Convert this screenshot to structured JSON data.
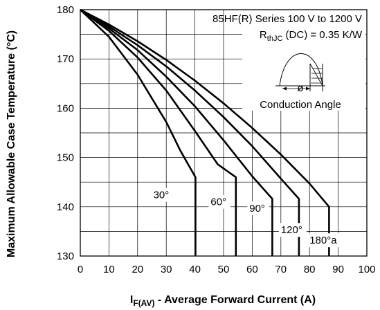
{
  "chart_data": {
    "type": "line",
    "title": "85HF(R) Series 100 V to 1200 V",
    "subtitle": {
      "prefix": "R",
      "subscript": "thJC",
      "suffix": " (DC) = 0.35 K/W"
    },
    "inset_label": "Conduction Angle",
    "inset_symbol": "ø",
    "xlabel": {
      "prefix": "I",
      "subscript": "F(AV)",
      "suffix": " - Average Forward Current (A)"
    },
    "ylabel": "Maximum Allowable Case Temperature (°C)",
    "xlim": [
      0,
      100
    ],
    "ylim": [
      130,
      180
    ],
    "xticks": [
      "0",
      "10",
      "20",
      "30",
      "40",
      "50",
      "60",
      "70",
      "80",
      "90",
      "100"
    ],
    "yticks": [
      "130",
      "140",
      "150",
      "160",
      "170",
      "180"
    ],
    "grid": true,
    "series": [
      {
        "name": "30°",
        "label_pos": [
          25.5,
          141.7
        ],
        "points": [
          [
            0,
            180
          ],
          [
            10,
            174.5
          ],
          [
            20,
            166.8
          ],
          [
            30,
            157.2
          ],
          [
            35,
            151.3
          ],
          [
            40.2,
            146
          ]
        ]
      },
      {
        "name": "60°",
        "label_pos": [
          45.5,
          140.3
        ],
        "points": [
          [
            0,
            180
          ],
          [
            10,
            175.7
          ],
          [
            20,
            170.3
          ],
          [
            30,
            163.6
          ],
          [
            40,
            155.4
          ],
          [
            48,
            148.6
          ],
          [
            54.3,
            146
          ]
        ]
      },
      {
        "name": "90°",
        "label_pos": [
          59.0,
          139.0
        ],
        "points": [
          [
            0,
            180
          ],
          [
            10,
            176.2
          ],
          [
            20,
            171.8
          ],
          [
            30,
            166.4
          ],
          [
            40,
            160.4
          ],
          [
            50,
            153.5
          ],
          [
            60,
            146.2
          ],
          [
            67,
            141.6
          ]
        ]
      },
      {
        "name": "120°",
        "label_pos": [
          70.0,
          134.6
        ],
        "points": [
          [
            0,
            180
          ],
          [
            10,
            176.6
          ],
          [
            20,
            172.8
          ],
          [
            30,
            168.5
          ],
          [
            40,
            163.6
          ],
          [
            50,
            158.2
          ],
          [
            60,
            152.3
          ],
          [
            70,
            145.7
          ],
          [
            76.3,
            141.6
          ]
        ]
      },
      {
        "name": "180°a",
        "label_pos": [
          80.0,
          132.5
        ],
        "points": [
          [
            0,
            180
          ],
          [
            10,
            177.0
          ],
          [
            20,
            173.6
          ],
          [
            30,
            169.8
          ],
          [
            40,
            165.6
          ],
          [
            50,
            161.0
          ],
          [
            60,
            156.0
          ],
          [
            70,
            150.6
          ],
          [
            80,
            144.7
          ],
          [
            86.8,
            140.0
          ]
        ]
      }
    ]
  }
}
